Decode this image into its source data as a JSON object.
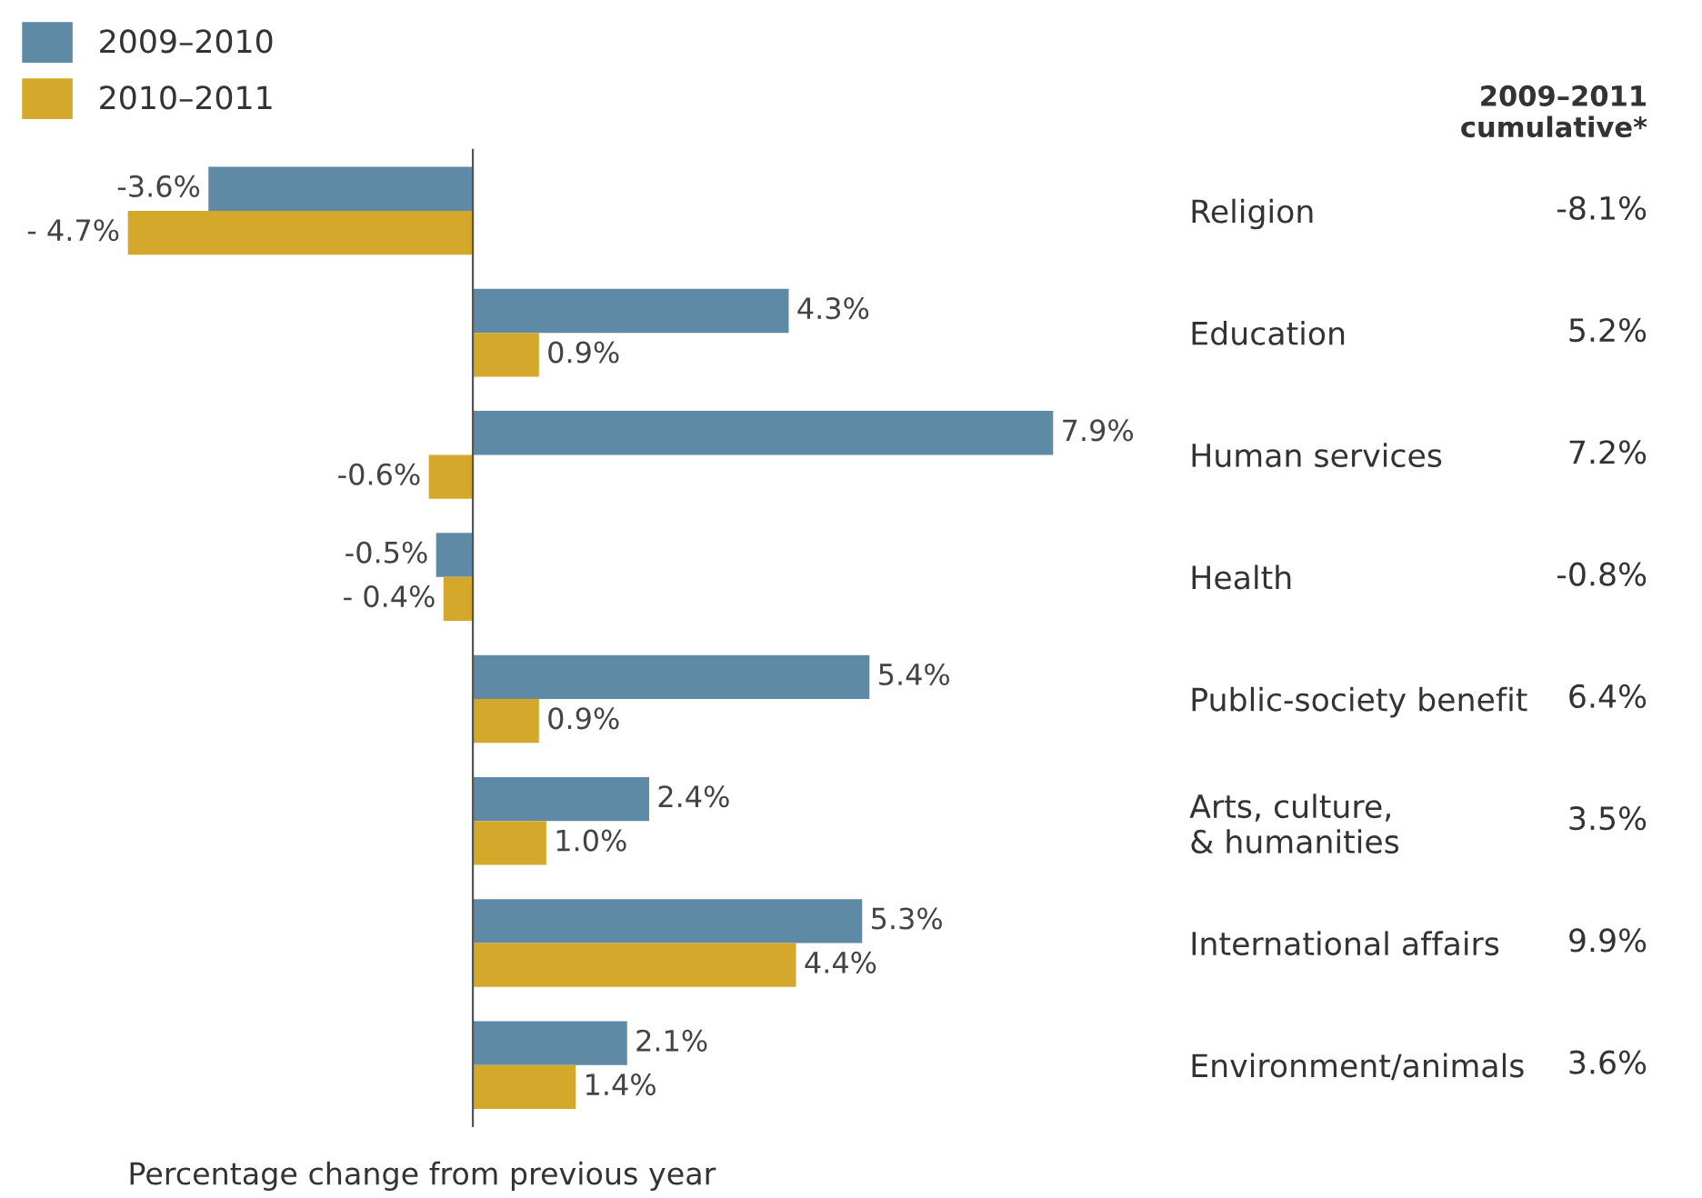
{
  "chart_data": {
    "type": "bar",
    "orientation": "horizontal",
    "categories": [
      "Religion",
      "Education",
      "Human services",
      "Health",
      "Public-society benefit",
      "Arts, culture,\n& humanities",
      "International affairs",
      "Environment/animals"
    ],
    "series": [
      {
        "name": "2009–2010",
        "color": "#5f8aa6",
        "values": [
          -3.6,
          4.3,
          7.9,
          -0.5,
          5.4,
          2.4,
          5.3,
          2.1
        ],
        "value_labels": [
          "-3.6%",
          "4.3%",
          "7.9%",
          "-0.5%",
          "5.4%",
          "2.4%",
          "5.3%",
          "2.1%"
        ]
      },
      {
        "name": "2010–2011",
        "color": "#d4a82a",
        "values": [
          -4.7,
          0.9,
          -0.6,
          -0.4,
          0.9,
          1.0,
          4.4,
          1.4
        ],
        "value_labels": [
          "- 4.7%",
          "0.9%",
          "-0.6%",
          "- 0.4%",
          "0.9%",
          "1.0%",
          "4.4%",
          "1.4%"
        ]
      }
    ],
    "xlabel": "Percentage change from previous year",
    "legend": "top left",
    "grid": false,
    "annotations": [
      "2009–2011\ncumulative*",
      "-8.1%",
      "5.2%",
      "7.2%",
      "-0.8%",
      "6.4%",
      "3.5%",
      "9.9%",
      "3.6%"
    ]
  }
}
